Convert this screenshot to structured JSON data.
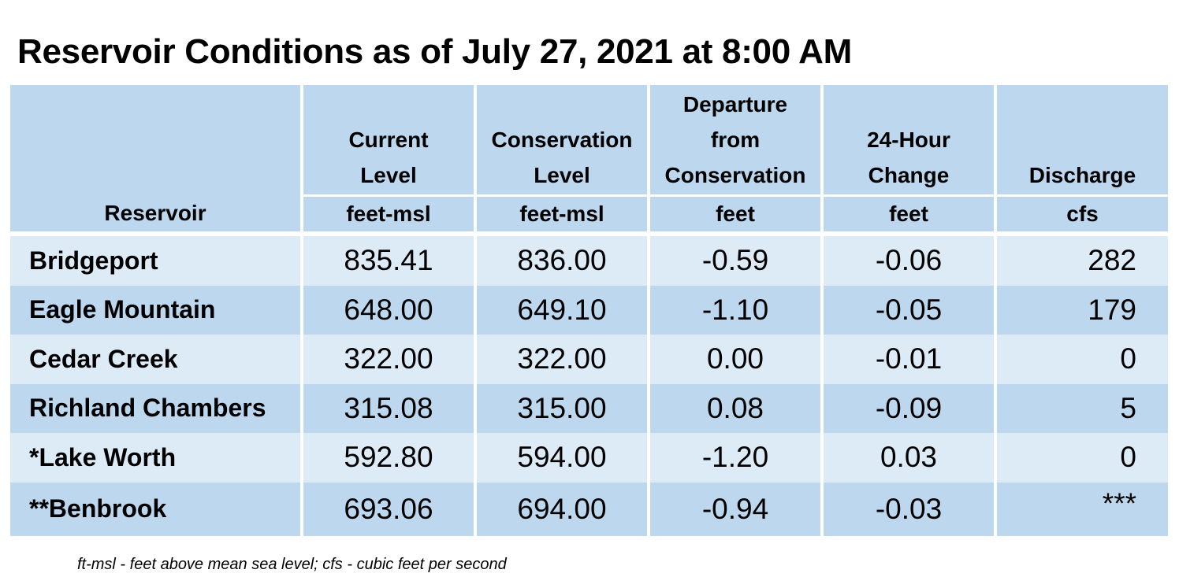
{
  "title": "Reservoir Conditions as of July 27, 2021 at 8:00 AM",
  "columns": [
    {
      "label_lines": [
        "",
        "",
        "Reservoir"
      ],
      "unit": ""
    },
    {
      "label_lines": [
        "Current",
        "Level"
      ],
      "unit": "feet-msl"
    },
    {
      "label_lines": [
        "Conservation",
        "Level"
      ],
      "unit": "feet-msl"
    },
    {
      "label_lines": [
        "Departure",
        "from",
        "Conservation"
      ],
      "unit": "feet"
    },
    {
      "label_lines": [
        "24-Hour",
        "Change"
      ],
      "unit": "feet"
    },
    {
      "label_lines": [
        "Discharge"
      ],
      "unit": "cfs"
    }
  ],
  "rows": [
    {
      "reservoir": "Bridgeport",
      "current": "835.41",
      "conservation": "836.00",
      "departure": "-0.59",
      "change": "-0.06",
      "discharge": "282"
    },
    {
      "reservoir": "Eagle Mountain",
      "current": "648.00",
      "conservation": "649.10",
      "departure": "-1.10",
      "change": "-0.05",
      "discharge": "179"
    },
    {
      "reservoir": "Cedar Creek",
      "current": "322.00",
      "conservation": "322.00",
      "departure": "0.00",
      "change": "-0.01",
      "discharge": "0"
    },
    {
      "reservoir": "Richland Chambers",
      "current": "315.08",
      "conservation": "315.00",
      "departure": "0.08",
      "change": "-0.09",
      "discharge": "5"
    },
    {
      "reservoir": "*Lake Worth",
      "current": "592.80",
      "conservation": "594.00",
      "departure": "-1.20",
      "change": "0.03",
      "discharge": "0"
    },
    {
      "reservoir": "**Benbrook",
      "current": "693.06",
      "conservation": "694.00",
      "departure": "-0.94",
      "change": "-0.03",
      "discharge": "***"
    }
  ],
  "footnote": "ft-msl - feet above mean sea level; cfs - cubic feet per second",
  "colors": {
    "header_bg": "#bdd7ee",
    "row_light": "#ddebf7",
    "row_dark": "#bdd7ee"
  }
}
